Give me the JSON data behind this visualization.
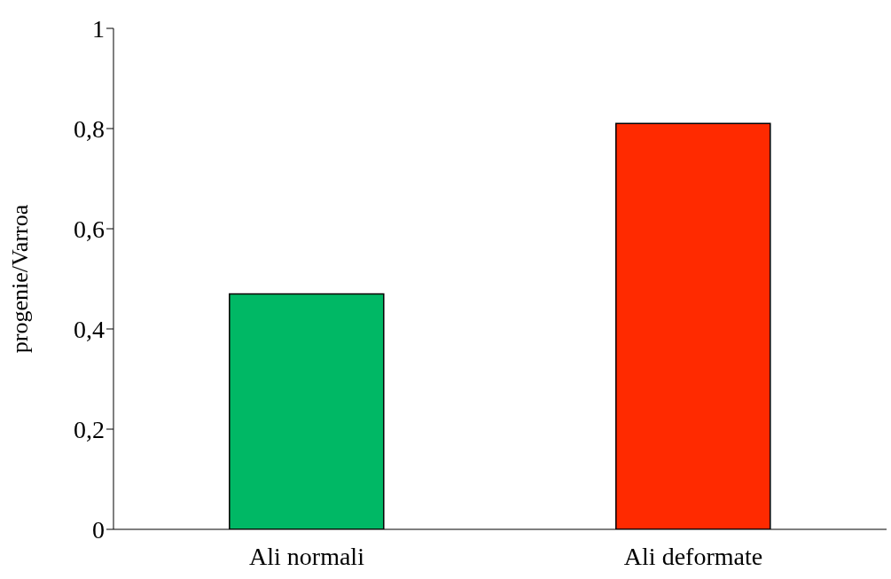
{
  "chart_data": {
    "type": "bar",
    "ylabel": "progenie/Varroa",
    "categories": [
      "Ali normali",
      "Ali deformate"
    ],
    "values": [
      0.47,
      0.81
    ],
    "colors": [
      "#00b865",
      "#ff2a00"
    ],
    "ylim": [
      0,
      1
    ],
    "yticks": [
      0,
      {
        "value": 0.2,
        "label": "0,2"
      },
      {
        "value": 0.4,
        "label": "0,4"
      },
      {
        "value": 0.6,
        "label": "0,6"
      },
      {
        "value": 0.8,
        "label": "0,8"
      },
      1
    ],
    "grid": false
  }
}
